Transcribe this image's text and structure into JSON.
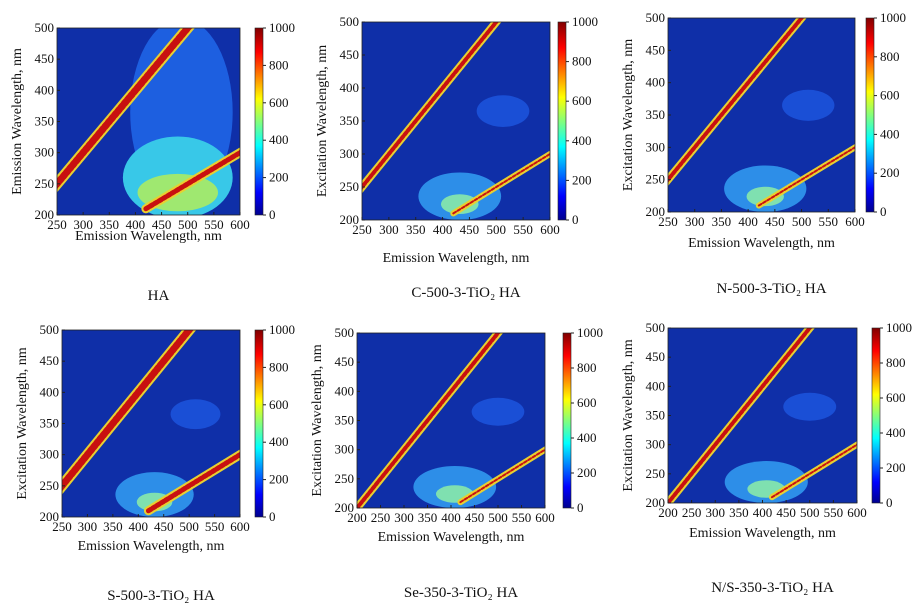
{
  "chart_data": [
    {
      "type": "contour",
      "title": "HA",
      "x_label": "Emission Wavelength, nm",
      "y_label": "Emission Wavelength, nm",
      "xlim": [
        250,
        600
      ],
      "xticks": [
        250,
        300,
        350,
        400,
        450,
        500,
        550,
        600
      ],
      "ylim": [
        200,
        500
      ],
      "yticks": [
        200,
        250,
        300,
        350,
        400,
        450,
        500
      ],
      "colorbar_lim": [
        0,
        1000
      ],
      "colorbar_ticks": [
        0,
        200,
        400,
        600,
        800,
        1000
      ]
    },
    {
      "type": "contour",
      "title": "C-500-3-TiO₂ HA",
      "x_label": "Emission Wavelength, nm",
      "y_label": "Excitation Wavelength, nm",
      "xlim": [
        250,
        600
      ],
      "xticks": [
        250,
        300,
        350,
        400,
        450,
        500,
        550,
        600
      ],
      "ylim": [
        200,
        500
      ],
      "yticks": [
        200,
        250,
        300,
        350,
        400,
        450,
        500
      ],
      "colorbar_lim": [
        0,
        1000
      ],
      "colorbar_ticks": [
        0,
        200,
        400,
        600,
        800,
        1000
      ]
    },
    {
      "type": "contour",
      "title": "N-500-3-TiO₂ HA",
      "x_label": "Emission Wavelength, nm",
      "y_label": "Excitation Wavelength, nm",
      "xlim": [
        250,
        600
      ],
      "xticks": [
        250,
        300,
        350,
        400,
        450,
        500,
        550,
        600
      ],
      "ylim": [
        200,
        500
      ],
      "yticks": [
        200,
        250,
        300,
        350,
        400,
        450,
        500
      ],
      "colorbar_lim": [
        0,
        1000
      ],
      "colorbar_ticks": [
        0,
        200,
        400,
        600,
        800,
        1000
      ]
    },
    {
      "type": "contour",
      "title": "S-500-3-TiO₂ HA",
      "x_label": "Emission Wavelength, nm",
      "y_label": "Excitation  Wavelength, nm",
      "xlim": [
        250,
        600
      ],
      "xticks": [
        250,
        300,
        350,
        400,
        450,
        500,
        550,
        600
      ],
      "ylim": [
        200,
        500
      ],
      "yticks": [
        200,
        250,
        300,
        350,
        400,
        450,
        500
      ],
      "colorbar_lim": [
        0,
        1000
      ],
      "colorbar_ticks": [
        0,
        200,
        400,
        600,
        800,
        1000
      ]
    },
    {
      "type": "contour",
      "title": "Se-350-3-TiO₂ HA",
      "x_label": "Emission Wavelength, nm",
      "y_label": "Excitation  Wavelength, nm",
      "xlim": [
        200,
        600
      ],
      "xticks": [
        200,
        250,
        300,
        350,
        400,
        450,
        500,
        550,
        600
      ],
      "ylim": [
        200,
        500
      ],
      "yticks": [
        200,
        250,
        300,
        350,
        400,
        450,
        500
      ],
      "colorbar_lim": [
        0,
        1000
      ],
      "colorbar_ticks": [
        0,
        200,
        400,
        600,
        800,
        1000
      ]
    },
    {
      "type": "contour",
      "title": "N/S-350-3-TiO₂ HA",
      "x_label": "Emission Wavelength, nm",
      "y_label": "Excitation Wavelength, nm",
      "xlim": [
        200,
        600
      ],
      "xticks": [
        200,
        250,
        300,
        350,
        400,
        450,
        500,
        550,
        600
      ],
      "ylim": [
        200,
        500
      ],
      "yticks": [
        200,
        250,
        300,
        350,
        400,
        450,
        500
      ],
      "colorbar_lim": [
        0,
        1000
      ],
      "colorbar_ticks": [
        0,
        200,
        400,
        600,
        800,
        1000
      ]
    }
  ]
}
